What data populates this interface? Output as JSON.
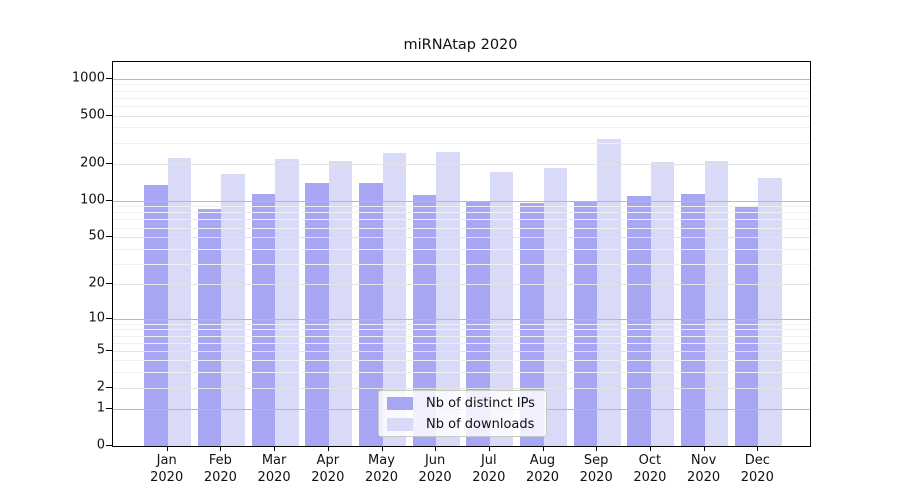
{
  "chart_data": {
    "type": "bar",
    "title": "miRNAtap 2020",
    "categories": [
      {
        "month": "Jan",
        "year": "2020"
      },
      {
        "month": "Feb",
        "year": "2020"
      },
      {
        "month": "Mar",
        "year": "2020"
      },
      {
        "month": "Apr",
        "year": "2020"
      },
      {
        "month": "May",
        "year": "2020"
      },
      {
        "month": "Jun",
        "year": "2020"
      },
      {
        "month": "Jul",
        "year": "2020"
      },
      {
        "month": "Aug",
        "year": "2020"
      },
      {
        "month": "Sep",
        "year": "2020"
      },
      {
        "month": "Oct",
        "year": "2020"
      },
      {
        "month": "Nov",
        "year": "2020"
      },
      {
        "month": "Dec",
        "year": "2020"
      }
    ],
    "series": [
      {
        "name": "Nb of distinct IPs",
        "color": "#a6a6f2",
        "values": [
          136,
          86,
          114,
          139,
          140,
          111,
          100,
          96,
          97,
          109,
          113,
          90
        ]
      },
      {
        "name": "Nb of downloads",
        "color": "#d9d9f8",
        "values": [
          224,
          166,
          219,
          212,
          249,
          252,
          174,
          185,
          322,
          209,
          212,
          154
        ]
      }
    ],
    "y_axis": {
      "scale": "log10(1+value)",
      "ticks": [
        0,
        1,
        2,
        5,
        10,
        20,
        50,
        100,
        200,
        500,
        1000
      ],
      "top_value": 1372,
      "grid": true
    },
    "legend": {
      "position": "inside-bottom-center"
    }
  }
}
